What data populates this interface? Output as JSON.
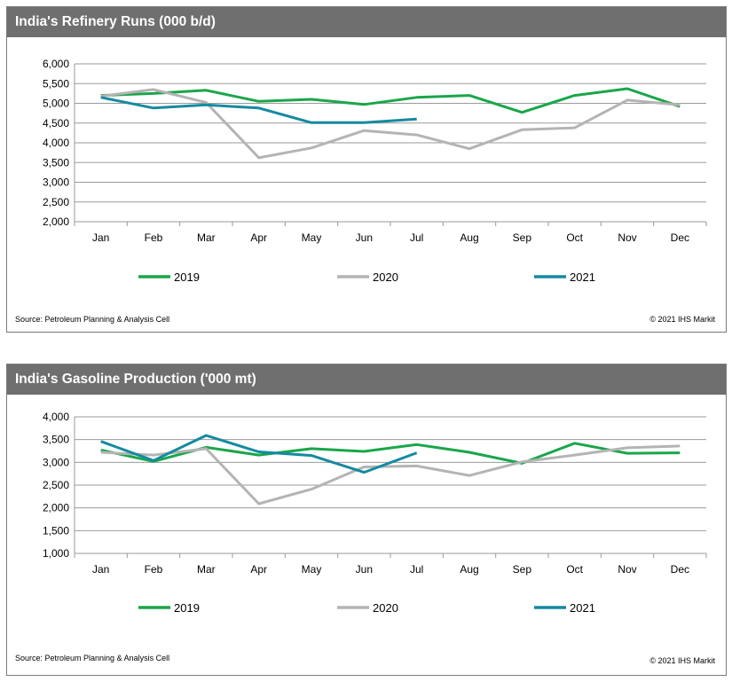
{
  "colors": {
    "2019": "#1aa64a",
    "2020": "#b4b4b4",
    "2021": "#158aa0",
    "header": "#6f6f6f"
  },
  "chart_data": [
    {
      "type": "line",
      "title": "India's Refinery Runs (000 b/d)",
      "categories": [
        "Jan",
        "Feb",
        "Mar",
        "Apr",
        "May",
        "Jun",
        "Jul",
        "Aug",
        "Sep",
        "Oct",
        "Nov",
        "Dec"
      ],
      "ylim": [
        2000,
        6000
      ],
      "yticks": [
        2000,
        2500,
        3000,
        3500,
        4000,
        4500,
        5000,
        5500,
        6000
      ],
      "ytick_labels": [
        "2,000",
        "2,500",
        "3,000",
        "3,500",
        "4,000",
        "4,500",
        "5,000",
        "5,500",
        "6,000"
      ],
      "grid": true,
      "legend_position": "bottom",
      "series": [
        {
          "name": "2019",
          "color": "#1aa64a",
          "values": [
            5200,
            5250,
            5330,
            5050,
            5100,
            4970,
            5150,
            5200,
            4770,
            5200,
            5370,
            4920
          ]
        },
        {
          "name": "2020",
          "color": "#b4b4b4",
          "values": [
            5180,
            5350,
            5020,
            3620,
            3870,
            4310,
            4200,
            3850,
            4330,
            4380,
            5080,
            4960
          ]
        },
        {
          "name": "2021",
          "color": "#158aa0",
          "values": [
            5150,
            4880,
            4960,
            4880,
            4510,
            4510,
            4600,
            null,
            null,
            null,
            null,
            null
          ]
        }
      ],
      "source": "Source: Petroleum Planning & Analysis Cell",
      "copyright": "© 2021 IHS Markit"
    },
    {
      "type": "line",
      "title": "India's Gasoline Production ('000 mt)",
      "categories": [
        "Jan",
        "Feb",
        "Mar",
        "Apr",
        "May",
        "Jun",
        "Jul",
        "Aug",
        "Sep",
        "Oct",
        "Nov",
        "Dec"
      ],
      "ylim": [
        1000,
        4000
      ],
      "yticks": [
        1000,
        1500,
        2000,
        2500,
        3000,
        3500,
        4000
      ],
      "ytick_labels": [
        "1,000",
        "1,500",
        "2,000",
        "2,500",
        "3,000",
        "3,500",
        "4,000"
      ],
      "grid": true,
      "legend_position": "bottom",
      "series": [
        {
          "name": "2019",
          "color": "#1aa64a",
          "values": [
            3270,
            3020,
            3330,
            3160,
            3300,
            3240,
            3390,
            3220,
            2980,
            3420,
            3200,
            3210
          ]
        },
        {
          "name": "2020",
          "color": "#b4b4b4",
          "values": [
            3220,
            3160,
            3300,
            2090,
            2410,
            2900,
            2920,
            2710,
            3010,
            3160,
            3320,
            3360
          ]
        },
        {
          "name": "2021",
          "color": "#158aa0",
          "values": [
            3460,
            3040,
            3590,
            3230,
            3150,
            2780,
            3210,
            null,
            null,
            null,
            null,
            null
          ]
        }
      ],
      "source": "Source: Petroleum Planning & Analysis Cell",
      "copyright": "© 2021 IHS Markit"
    }
  ]
}
